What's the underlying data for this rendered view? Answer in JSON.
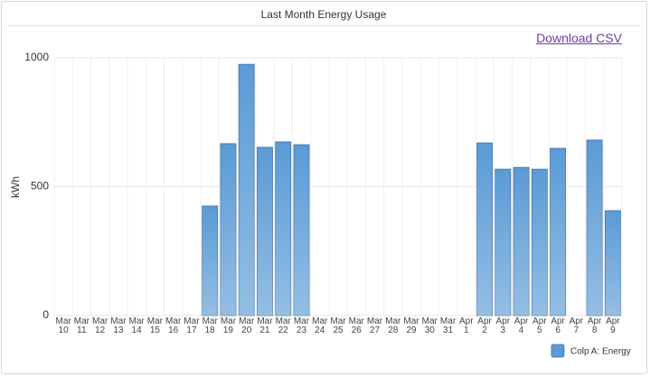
{
  "download_link": "Download CSV",
  "chart_data": {
    "type": "bar",
    "title": "Last Month Energy Usage",
    "y_label": "kWh",
    "categories": [
      "Mar 10",
      "Mar 11",
      "Mar 12",
      "Mar 13",
      "Mar 14",
      "Mar 15",
      "Mar 16",
      "Mar 17",
      "Mar 18",
      "Mar 19",
      "Mar 20",
      "Mar 21",
      "Mar 22",
      "Mar 23",
      "Mar 24",
      "Mar 25",
      "Mar 26",
      "Mar 27",
      "Mar 28",
      "Mar 29",
      "Mar 30",
      "Mar 31",
      "Apr 1",
      "Apr 2",
      "Apr 3",
      "Apr 4",
      "Apr 5",
      "Apr 6",
      "Apr 7",
      "Apr 8",
      "Apr 9"
    ],
    "series": [
      {
        "name": "Colp A: Energy",
        "color": "#5b9bd5",
        "values": [
          0,
          0,
          0,
          0,
          0,
          0,
          0,
          0,
          425,
          667,
          975,
          653,
          674,
          663,
          0,
          0,
          0,
          0,
          0,
          0,
          0,
          0,
          0,
          670,
          568,
          575,
          568,
          649,
          0,
          681,
          407
        ]
      }
    ],
    "ylim": [
      0,
      1000
    ],
    "yticks": [
      0,
      500,
      1000
    ],
    "grid": true,
    "legend": "bottom-right"
  }
}
